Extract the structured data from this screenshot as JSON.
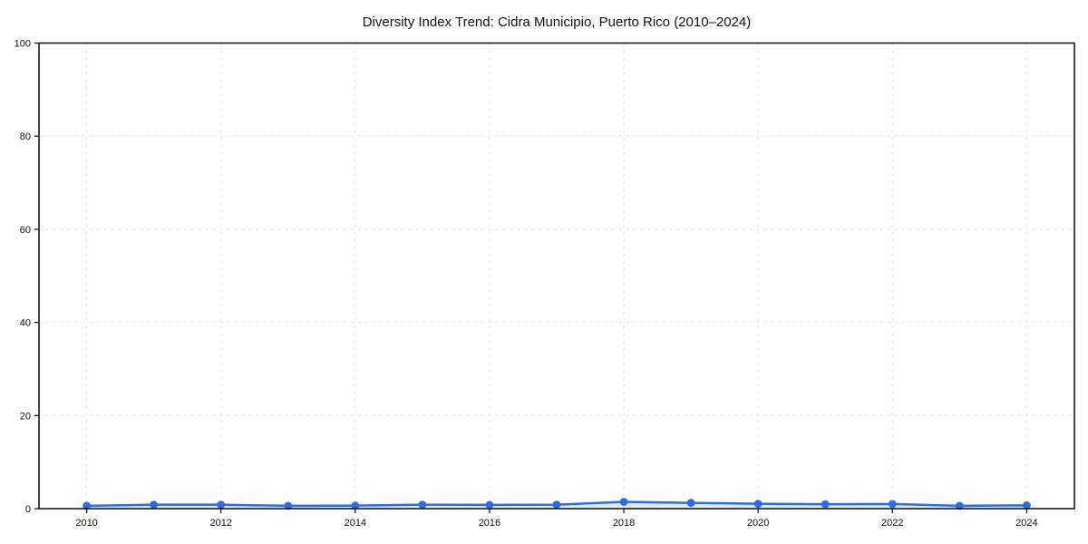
{
  "chart_data": {
    "type": "line",
    "title": "Diversity Index Trend: Cidra Municipio, Puerto Rico (2010–2024)",
    "xlabel": "",
    "ylabel": "",
    "x": [
      2010,
      2011,
      2012,
      2013,
      2014,
      2015,
      2016,
      2017,
      2018,
      2019,
      2020,
      2021,
      2022,
      2023,
      2024
    ],
    "series": [
      {
        "name": "Diversity Index",
        "values": [
          0.6,
          0.85,
          0.85,
          0.6,
          0.65,
          0.85,
          0.8,
          0.85,
          1.45,
          1.25,
          1.05,
          0.95,
          1.0,
          0.6,
          0.7
        ]
      }
    ],
    "xticks": [
      2010,
      2012,
      2014,
      2016,
      2018,
      2020,
      2022,
      2024
    ],
    "yticks": [
      0,
      20,
      40,
      60,
      80,
      100
    ],
    "xlim": [
      2009.29,
      2024.71
    ],
    "ylim": [
      0,
      100
    ],
    "grid": "dashed",
    "legend_position": "none",
    "marker": "circle",
    "style": {
      "line_color": "#2a6de4",
      "marker_color": "#2a6de4",
      "area_fill_color": "#2a6de4",
      "area_fill_opacity": 0.14,
      "grid_color": "#e2e2e2",
      "spine_color": "#1a1a1a",
      "tick_color": "#1a1a1a",
      "background_color": "#ffffff"
    }
  }
}
